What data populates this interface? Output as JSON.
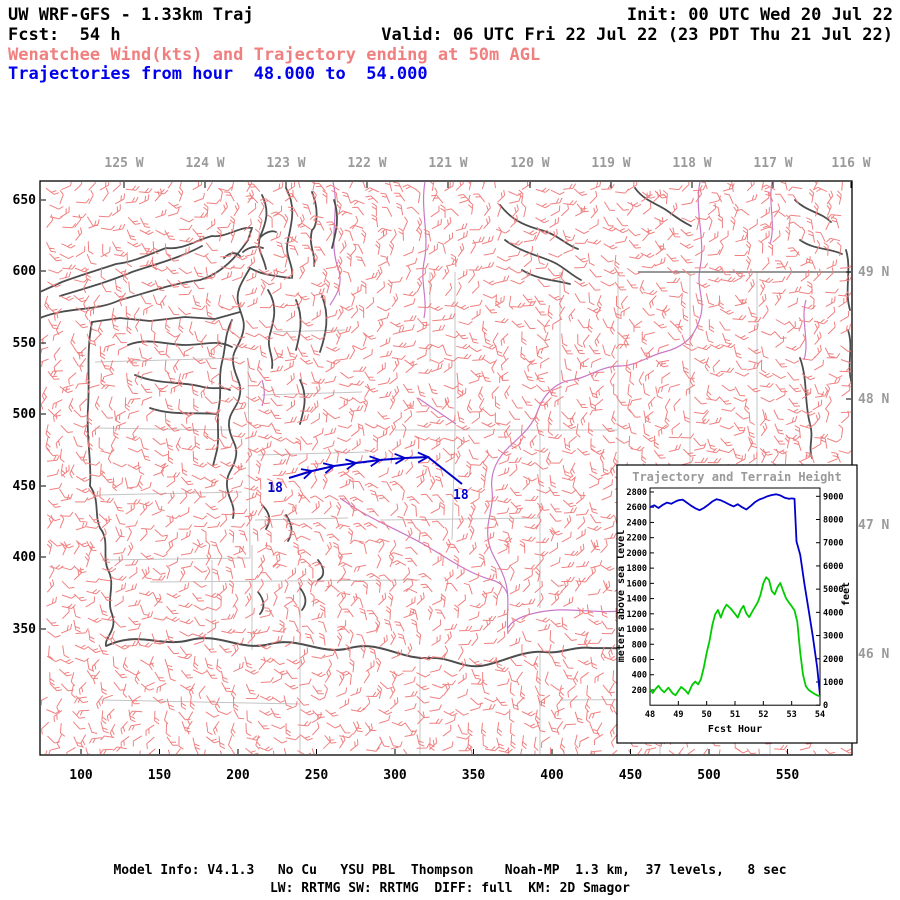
{
  "header": {
    "line1_left": "UW WRF-GFS - 1.33km Traj",
    "line1_right": "Init: 00 UTC Wed 20 Jul 22",
    "line2_left": "Fcst:  54 h",
    "line2_right": "Valid: 06 UTC Fri 22 Jul 22 (23 PDT Thu 21 Jul 22)",
    "line3": "Wenatchee Wind(kts) and Trajectory ending at 50m AGL",
    "line4": "Trajectories from hour  48.000 to  54.000"
  },
  "map": {
    "top_axis_labels": [
      "125 W",
      "124 W",
      "123 W",
      "122 W",
      "121 W",
      "120 W",
      "119 W",
      "118 W",
      "117 W",
      "116 W"
    ],
    "right_axis_labels": [
      "49 N",
      "48 N",
      "47 N",
      "46 N"
    ],
    "left_axis_labels": [
      "650",
      "600",
      "550",
      "500",
      "450",
      "400",
      "350"
    ],
    "bottom_axis_labels": [
      "100",
      "150",
      "200",
      "250",
      "300",
      "350",
      "400",
      "450",
      "500",
      "550"
    ],
    "trajectory_labels": [
      "18",
      "18"
    ]
  },
  "chart_data": {
    "type": "line",
    "title": "Trajectory and Terrain Height",
    "xlabel": "Fcst Hour",
    "ylabel_left": "meters above sea level",
    "ylabel_right": "feet",
    "x_ticks": [
      48,
      49,
      50,
      51,
      52,
      53,
      54
    ],
    "y_ticks_left_meters": [
      200,
      400,
      600,
      800,
      1000,
      1200,
      1400,
      1600,
      1800,
      2000,
      2200,
      2400,
      2600,
      2800
    ],
    "y_ticks_right_feet": [
      0,
      1000,
      2000,
      3000,
      4000,
      5000,
      6000,
      7000,
      8000,
      9000
    ],
    "xlim": [
      48,
      54
    ],
    "ylim_meters": [
      0,
      2850
    ],
    "grid": false,
    "legend": "none",
    "series": [
      {
        "name": "Trajectory height",
        "color_key": "trajectory_blue",
        "points_hour_meters": [
          [
            48.0,
            2600
          ],
          [
            48.15,
            2625
          ],
          [
            48.3,
            2590
          ],
          [
            48.45,
            2630
          ],
          [
            48.6,
            2660
          ],
          [
            48.75,
            2645
          ],
          [
            48.9,
            2675
          ],
          [
            49.0,
            2690
          ],
          [
            49.15,
            2700
          ],
          [
            49.3,
            2660
          ],
          [
            49.45,
            2620
          ],
          [
            49.6,
            2585
          ],
          [
            49.75,
            2560
          ],
          [
            49.9,
            2590
          ],
          [
            50.05,
            2630
          ],
          [
            50.2,
            2675
          ],
          [
            50.35,
            2705
          ],
          [
            50.5,
            2690
          ],
          [
            50.65,
            2665
          ],
          [
            50.8,
            2635
          ],
          [
            50.95,
            2610
          ],
          [
            51.1,
            2640
          ],
          [
            51.25,
            2600
          ],
          [
            51.4,
            2570
          ],
          [
            51.55,
            2615
          ],
          [
            51.7,
            2665
          ],
          [
            51.85,
            2700
          ],
          [
            52.0,
            2720
          ],
          [
            52.15,
            2745
          ],
          [
            52.3,
            2760
          ],
          [
            52.45,
            2770
          ],
          [
            52.6,
            2755
          ],
          [
            52.75,
            2725
          ],
          [
            52.9,
            2710
          ],
          [
            53.0,
            2715
          ],
          [
            53.1,
            2710
          ],
          [
            53.17,
            2150
          ],
          [
            53.3,
            1975
          ],
          [
            53.45,
            1595
          ],
          [
            53.6,
            1245
          ],
          [
            53.75,
            895
          ],
          [
            53.9,
            495
          ],
          [
            54.0,
            130
          ]
        ]
      },
      {
        "name": "Terrain height",
        "color_key": "terrain_green",
        "points_hour_meters": [
          [
            48.0,
            210
          ],
          [
            48.1,
            160
          ],
          [
            48.2,
            215
          ],
          [
            48.3,
            255
          ],
          [
            48.4,
            205
          ],
          [
            48.5,
            170
          ],
          [
            48.65,
            230
          ],
          [
            48.8,
            155
          ],
          [
            48.9,
            130
          ],
          [
            49.0,
            185
          ],
          [
            49.1,
            240
          ],
          [
            49.25,
            195
          ],
          [
            49.35,
            150
          ],
          [
            49.5,
            275
          ],
          [
            49.6,
            310
          ],
          [
            49.7,
            275
          ],
          [
            49.8,
            345
          ],
          [
            49.9,
            495
          ],
          [
            50.0,
            690
          ],
          [
            50.1,
            845
          ],
          [
            50.2,
            1050
          ],
          [
            50.3,
            1195
          ],
          [
            50.4,
            1250
          ],
          [
            50.5,
            1150
          ],
          [
            50.6,
            1255
          ],
          [
            50.7,
            1320
          ],
          [
            50.85,
            1270
          ],
          [
            51.0,
            1200
          ],
          [
            51.1,
            1150
          ],
          [
            51.2,
            1250
          ],
          [
            51.3,
            1305
          ],
          [
            51.4,
            1205
          ],
          [
            51.5,
            1155
          ],
          [
            51.65,
            1255
          ],
          [
            51.8,
            1350
          ],
          [
            51.9,
            1450
          ],
          [
            52.0,
            1600
          ],
          [
            52.1,
            1680
          ],
          [
            52.2,
            1645
          ],
          [
            52.3,
            1500
          ],
          [
            52.4,
            1455
          ],
          [
            52.5,
            1550
          ],
          [
            52.6,
            1605
          ],
          [
            52.7,
            1500
          ],
          [
            52.8,
            1405
          ],
          [
            52.9,
            1350
          ],
          [
            53.0,
            1300
          ],
          [
            53.1,
            1245
          ],
          [
            53.2,
            1095
          ],
          [
            53.3,
            695
          ],
          [
            53.4,
            400
          ],
          [
            53.5,
            250
          ],
          [
            53.6,
            200
          ],
          [
            53.7,
            175
          ],
          [
            53.8,
            150
          ],
          [
            53.9,
            130
          ],
          [
            54.0,
            115
          ]
        ]
      }
    ]
  },
  "colors": {
    "wind_barb_salmon": "#F08080",
    "header_blue": "#0000EE",
    "trajectory_blue": "#0000CD",
    "terrain_green": "#00CC00",
    "axis_gray": "#9A9A9A",
    "map_outline_gray": "#4D4D4D",
    "border_gray": "#777777",
    "county_gray": "#C4C4C4",
    "river_magenta": "#C878C8"
  },
  "footer": {
    "line1": "Model Info: V4.1.3   No Cu   YSU PBL  Thompson    Noah-MP  1.3 km,  37 levels,   8 sec",
    "line2": "LW: RRTMG SW: RRTMG  DIFF: full  KM: 2D Smagor"
  }
}
